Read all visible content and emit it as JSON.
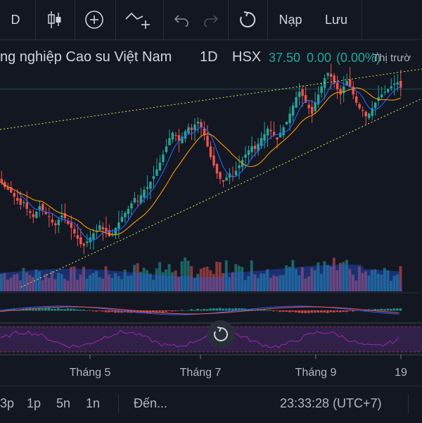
{
  "toolbar": {
    "interval_label": "D",
    "candle_icon": "candles-icon",
    "add_icon": "plus-circle-icon",
    "compare_icon": "compare-icon",
    "undo_icon": "undo-icon",
    "redo_icon": "redo-icon",
    "reload_icon": "reload-icon",
    "load_label": "Nạp",
    "save_label": "Lưu"
  },
  "symbol": {
    "name": "ng nghiệp Cao su Việt Nam",
    "interval": "1D",
    "exchange": "HSX",
    "price": "37.50",
    "change": "0.00",
    "change_pct": "(0.00%)",
    "market_status": "Thị trườ"
  },
  "time_axis": {
    "labels": [
      "Tháng 5",
      "Tháng 7",
      "Tháng 9",
      "19"
    ]
  },
  "bottombar": {
    "ranges": [
      "3p",
      "1p",
      "5n",
      "1n"
    ],
    "goto_label": "Đến...",
    "clock": "23:33:28 (UTC+7)"
  },
  "colors": {
    "up": "#26a69a",
    "down": "#ef5350",
    "background": "#131722",
    "trendline": "#e6e34a",
    "rsi_fill": "#4a2a6a",
    "ma_fast": "#2962ff",
    "ma_slow": "#ff9800"
  },
  "chart_data": {
    "type": "candlestick",
    "close_series": [
      30.5,
      30.2,
      30.0,
      29.8,
      29.5,
      29.2,
      28.9,
      29.1,
      28.6,
      28.3,
      28.0,
      28.4,
      28.8,
      28.5,
      28.2,
      28.0,
      27.6,
      27.4,
      27.8,
      28.1,
      27.9,
      27.5,
      27.2,
      26.8,
      26.4,
      26.0,
      25.9,
      26.2,
      26.5,
      26.8,
      27.0,
      27.4,
      27.1,
      26.9,
      26.6,
      26.8,
      27.2,
      27.6,
      28.0,
      28.3,
      28.6,
      29.0,
      29.4,
      29.2,
      29.6,
      30.0,
      30.2,
      30.6,
      31.0,
      31.5,
      32.0,
      32.6,
      33.2,
      33.8,
      34.2,
      34.0,
      33.6,
      33.9,
      34.3,
      34.6,
      34.4,
      34.8,
      35.0,
      34.6,
      34.0,
      33.2,
      32.4,
      31.8,
      31.2,
      30.8,
      30.6,
      30.9,
      31.2,
      31.0,
      31.4,
      31.8,
      32.2,
      32.6,
      32.9,
      33.2,
      33.0,
      33.4,
      33.8,
      34.1,
      34.5,
      34.3,
      34.0,
      33.7,
      34.2,
      34.6,
      35.0,
      35.6,
      36.2,
      36.8,
      37.2,
      36.9,
      36.4,
      36.0,
      35.6,
      36.4,
      37.0,
      37.6,
      38.2,
      38.6,
      38.3,
      37.8,
      37.4,
      37.0,
      37.6,
      38.0,
      37.6,
      37.0,
      36.4,
      36.0,
      35.8,
      35.4,
      35.6,
      36.0,
      36.4,
      36.8,
      37.0,
      37.2,
      37.4,
      37.6,
      37.8,
      37.9,
      37.5
    ],
    "volume_note": "volume bars shown beneath price",
    "indicators": [
      "MACD",
      "RSI"
    ]
  }
}
